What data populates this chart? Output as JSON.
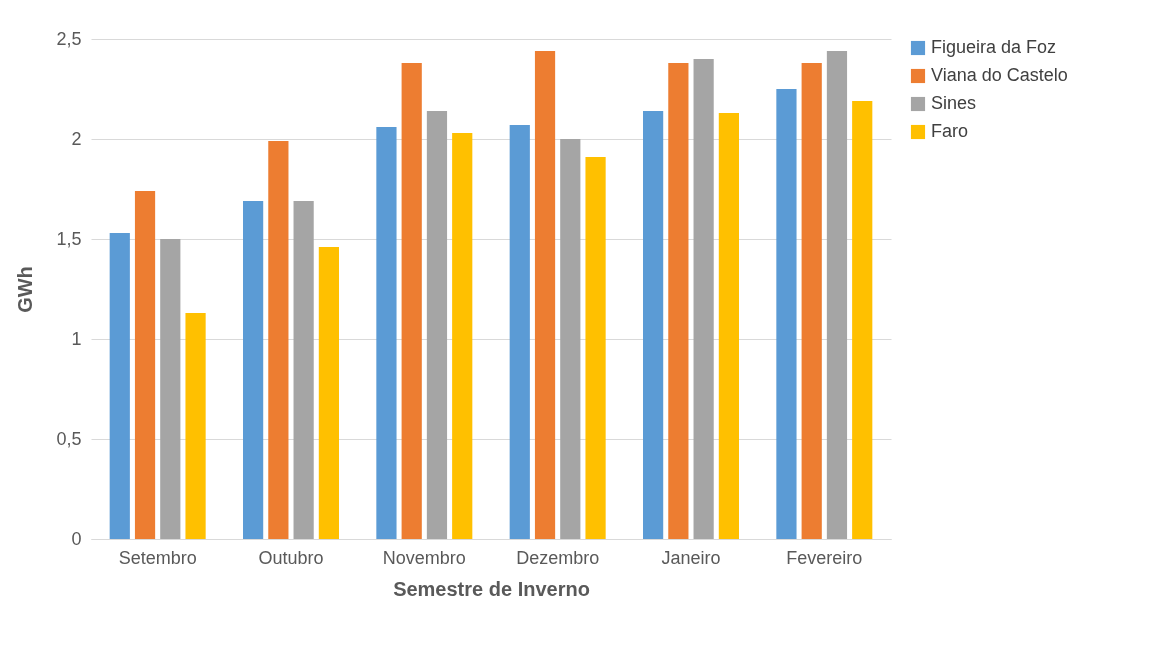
{
  "chart_data": {
    "type": "bar",
    "xlabel": "Semestre de Inverno",
    "ylabel": "GWh",
    "categories": [
      "Setembro",
      "Outubro",
      "Novembro",
      "Dezembro",
      "Janeiro",
      "Fevereiro"
    ],
    "series": [
      {
        "name": "Figueira da Foz",
        "color": "#5b9bd5",
        "values": [
          1.53,
          1.69,
          2.06,
          2.07,
          2.14,
          2.25
        ]
      },
      {
        "name": "Viana do Castelo",
        "color": "#ed7d31",
        "values": [
          1.74,
          1.99,
          2.38,
          2.44,
          2.38,
          2.38
        ]
      },
      {
        "name": "Sines",
        "color": "#a5a5a5",
        "values": [
          1.5,
          1.69,
          2.14,
          2.0,
          2.4,
          2.44
        ]
      },
      {
        "name": "Faro",
        "color": "#ffc000",
        "values": [
          1.13,
          1.46,
          2.03,
          1.91,
          2.13,
          2.19
        ]
      }
    ],
    "ylim": [
      0,
      2.5
    ],
    "yticks": [
      0,
      {
        "value": 0.5,
        "label": "0,5"
      },
      1,
      {
        "value": 1.5,
        "label": "1,5"
      },
      2,
      {
        "value": 2.5,
        "label": "2,5"
      }
    ],
    "grid": "y",
    "legend": "right"
  }
}
